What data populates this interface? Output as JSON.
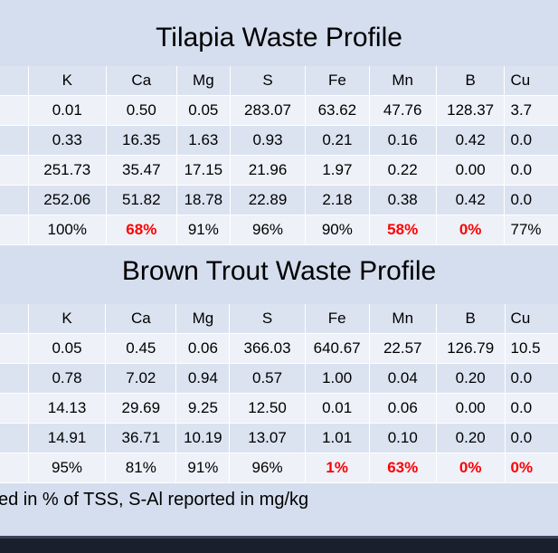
{
  "slide": {
    "title1": "Tilapia Waste Profile",
    "title2": "Brown Trout Waste Profile",
    "footnote": "ed in % of TSS, S-Al reported in mg/kg"
  },
  "tilapia": {
    "headers": [
      "",
      "K",
      "Ca",
      "Mg",
      "S",
      "Fe",
      "Mn",
      "B",
      "Cu"
    ],
    "rows": [
      [
        "",
        "0.01",
        "0.50",
        "0.05",
        "283.07",
        "63.62",
        "47.76",
        "128.37",
        "3.7"
      ],
      [
        "",
        "0.33",
        "16.35",
        "1.63",
        "0.93",
        "0.21",
        "0.16",
        "0.42",
        "0.0"
      ],
      [
        "",
        "251.73",
        "35.47",
        "17.15",
        "21.96",
        "1.97",
        "0.22",
        "0.00",
        "0.0"
      ],
      [
        "",
        "252.06",
        "51.82",
        "18.78",
        "22.89",
        "2.18",
        "0.38",
        "0.42",
        "0.0"
      ],
      [
        "",
        "100%",
        "68%",
        "91%",
        "96%",
        "90%",
        "58%",
        "0%",
        "77%"
      ]
    ]
  },
  "brown_trout": {
    "headers": [
      "",
      "K",
      "Ca",
      "Mg",
      "S",
      "Fe",
      "Mn",
      "B",
      "Cu"
    ],
    "rows": [
      [
        "",
        "0.05",
        "0.45",
        "0.06",
        "366.03",
        "640.67",
        "22.57",
        "126.79",
        "10.5"
      ],
      [
        "",
        "0.78",
        "7.02",
        "0.94",
        "0.57",
        "1.00",
        "0.04",
        "0.20",
        "0.0"
      ],
      [
        "",
        "14.13",
        "29.69",
        "9.25",
        "12.50",
        "0.01",
        "0.06",
        "0.00",
        "0.0"
      ],
      [
        "",
        "14.91",
        "36.71",
        "10.19",
        "13.07",
        "1.01",
        "0.10",
        "0.20",
        "0.0"
      ],
      [
        "",
        "95%",
        "81%",
        "91%",
        "96%",
        "1%",
        "63%",
        "0%",
        "0%"
      ]
    ]
  },
  "colors": {
    "background": "#d5deee",
    "row_dark": "#dbe3f1",
    "row_light": "#eef1f8",
    "highlight": "#ff0000",
    "bottom_bar": "#1a1f2e"
  }
}
